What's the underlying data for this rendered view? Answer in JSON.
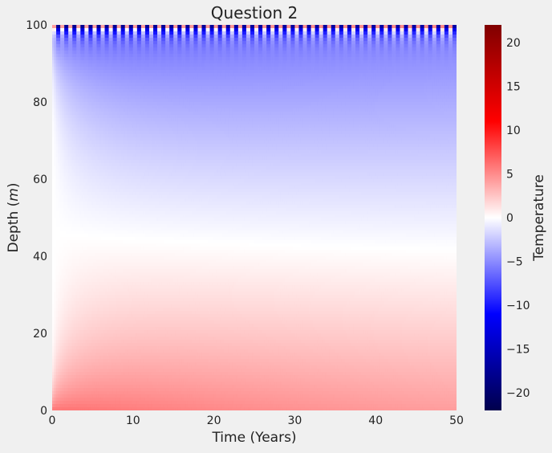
{
  "chart_data": {
    "type": "heatmap",
    "title": "Question 2",
    "xlabel": "Time (Years)",
    "ylabel_main": "Depth (",
    "ylabel_unit": "m",
    "ylabel_close": ")",
    "xlim": [
      0,
      50
    ],
    "ylim": [
      0,
      100
    ],
    "x_ticks": [
      0,
      10,
      20,
      30,
      40,
      50
    ],
    "y_ticks": [
      0,
      20,
      40,
      60,
      80,
      100
    ],
    "colorbar": {
      "label": "Temperature",
      "colormap": "seismic",
      "vmin": -22,
      "vmax": 22,
      "ticks": [
        -20,
        -15,
        -10,
        -5,
        0,
        5,
        10,
        15,
        20
      ]
    },
    "field": {
      "description_values": "temperature vs depth (m) and time (years)",
      "bottom_temperature": 6,
      "surface_mean_temperature": -7,
      "surface_seasonal_amplitude": 20,
      "seasonal_period_years": 1
    },
    "grid": false
  }
}
